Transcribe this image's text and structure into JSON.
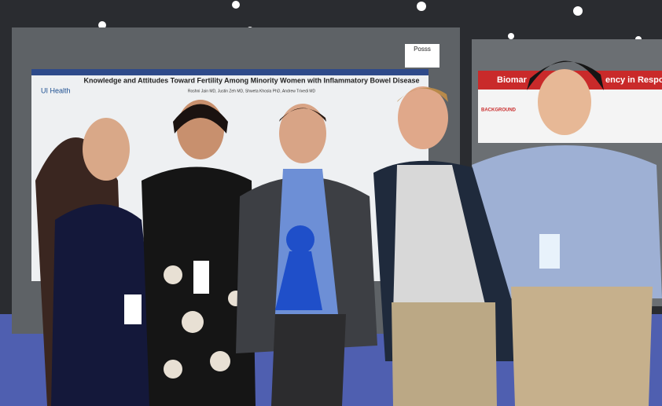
{
  "left_poster": {
    "logo": "UI Health",
    "title": "Knowledge and Attitudes Toward Fertility Among Minority Women with Inflammatory Bowel Disease",
    "authors": "Roshni Jain MD, Justin Zeh MD, Shweta Khosla PhD, Andrew Trivedi MD",
    "board_sign": "Posss"
  },
  "right_poster": {
    "title_left": "Biomar",
    "title_right": "ency in Respo",
    "section": "BACKGROUND"
  }
}
